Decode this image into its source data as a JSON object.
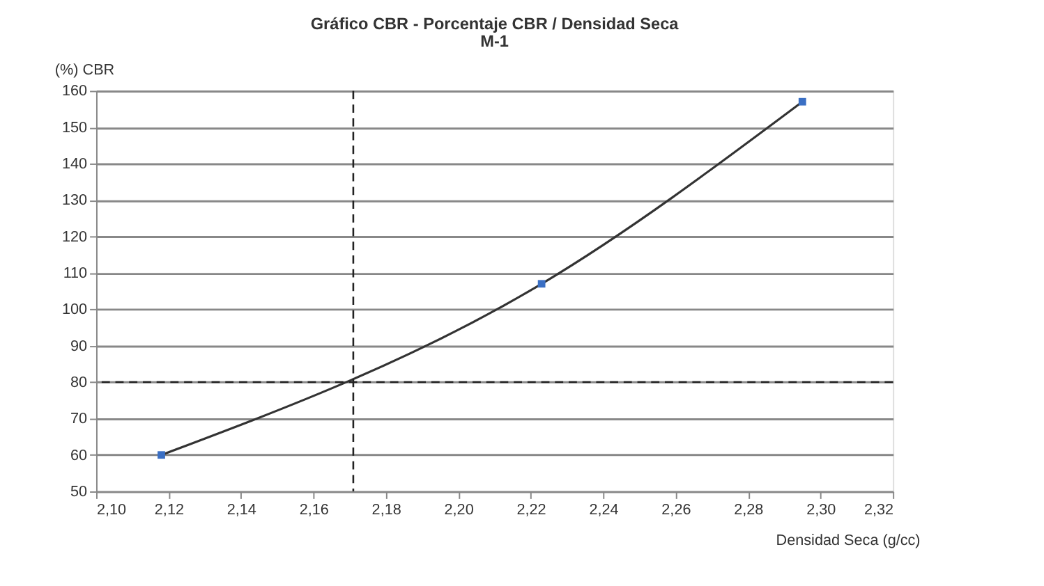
{
  "chart_data": {
    "type": "line",
    "title": "Gráfico CBR  - Porcentaje  CBR / Densidad Seca",
    "subtitle": "M-1",
    "xlabel": "Densidad Seca (g/cc)",
    "ylabel": "(%) CBR",
    "series": [
      {
        "color": "#333333",
        "marker": "none",
        "line_style": "solid",
        "x": [
          2.118,
          2.223,
          2.295
        ],
        "values": [
          60,
          107,
          157
        ]
      },
      {
        "type": "scatter",
        "color": "#3a6fc4",
        "marker": "square",
        "x": [
          2.118,
          2.223,
          2.295
        ],
        "values": [
          60,
          107,
          157
        ]
      }
    ],
    "xlim": [
      2.1,
      2.32
    ],
    "xticks": [
      {
        "value": 2.1,
        "label": "2,10"
      },
      {
        "value": 2.12,
        "label": "2,12"
      },
      {
        "value": 2.14,
        "label": "2,14"
      },
      {
        "value": 2.16,
        "label": "2,16"
      },
      {
        "value": 2.18,
        "label": "2,18"
      },
      {
        "value": 2.2,
        "label": "2,20"
      },
      {
        "value": 2.22,
        "label": "2,22"
      },
      {
        "value": 2.24,
        "label": "2,24"
      },
      {
        "value": 2.26,
        "label": "2,26"
      },
      {
        "value": 2.28,
        "label": "2,28"
      },
      {
        "value": 2.3,
        "label": "2,30"
      },
      {
        "value": 2.32,
        "label": "2,32"
      }
    ],
    "ylim": [
      50,
      160
    ],
    "yticks": [
      50,
      60,
      70,
      80,
      90,
      100,
      110,
      120,
      130,
      140,
      150,
      160
    ],
    "ref_lines": [
      {
        "axis": "x",
        "value": 2.171,
        "line_style": "dashed",
        "color": "#222222"
      },
      {
        "axis": "y",
        "value": 80,
        "line_style": "dashed",
        "color": "#222222"
      }
    ],
    "grid": "y"
  }
}
